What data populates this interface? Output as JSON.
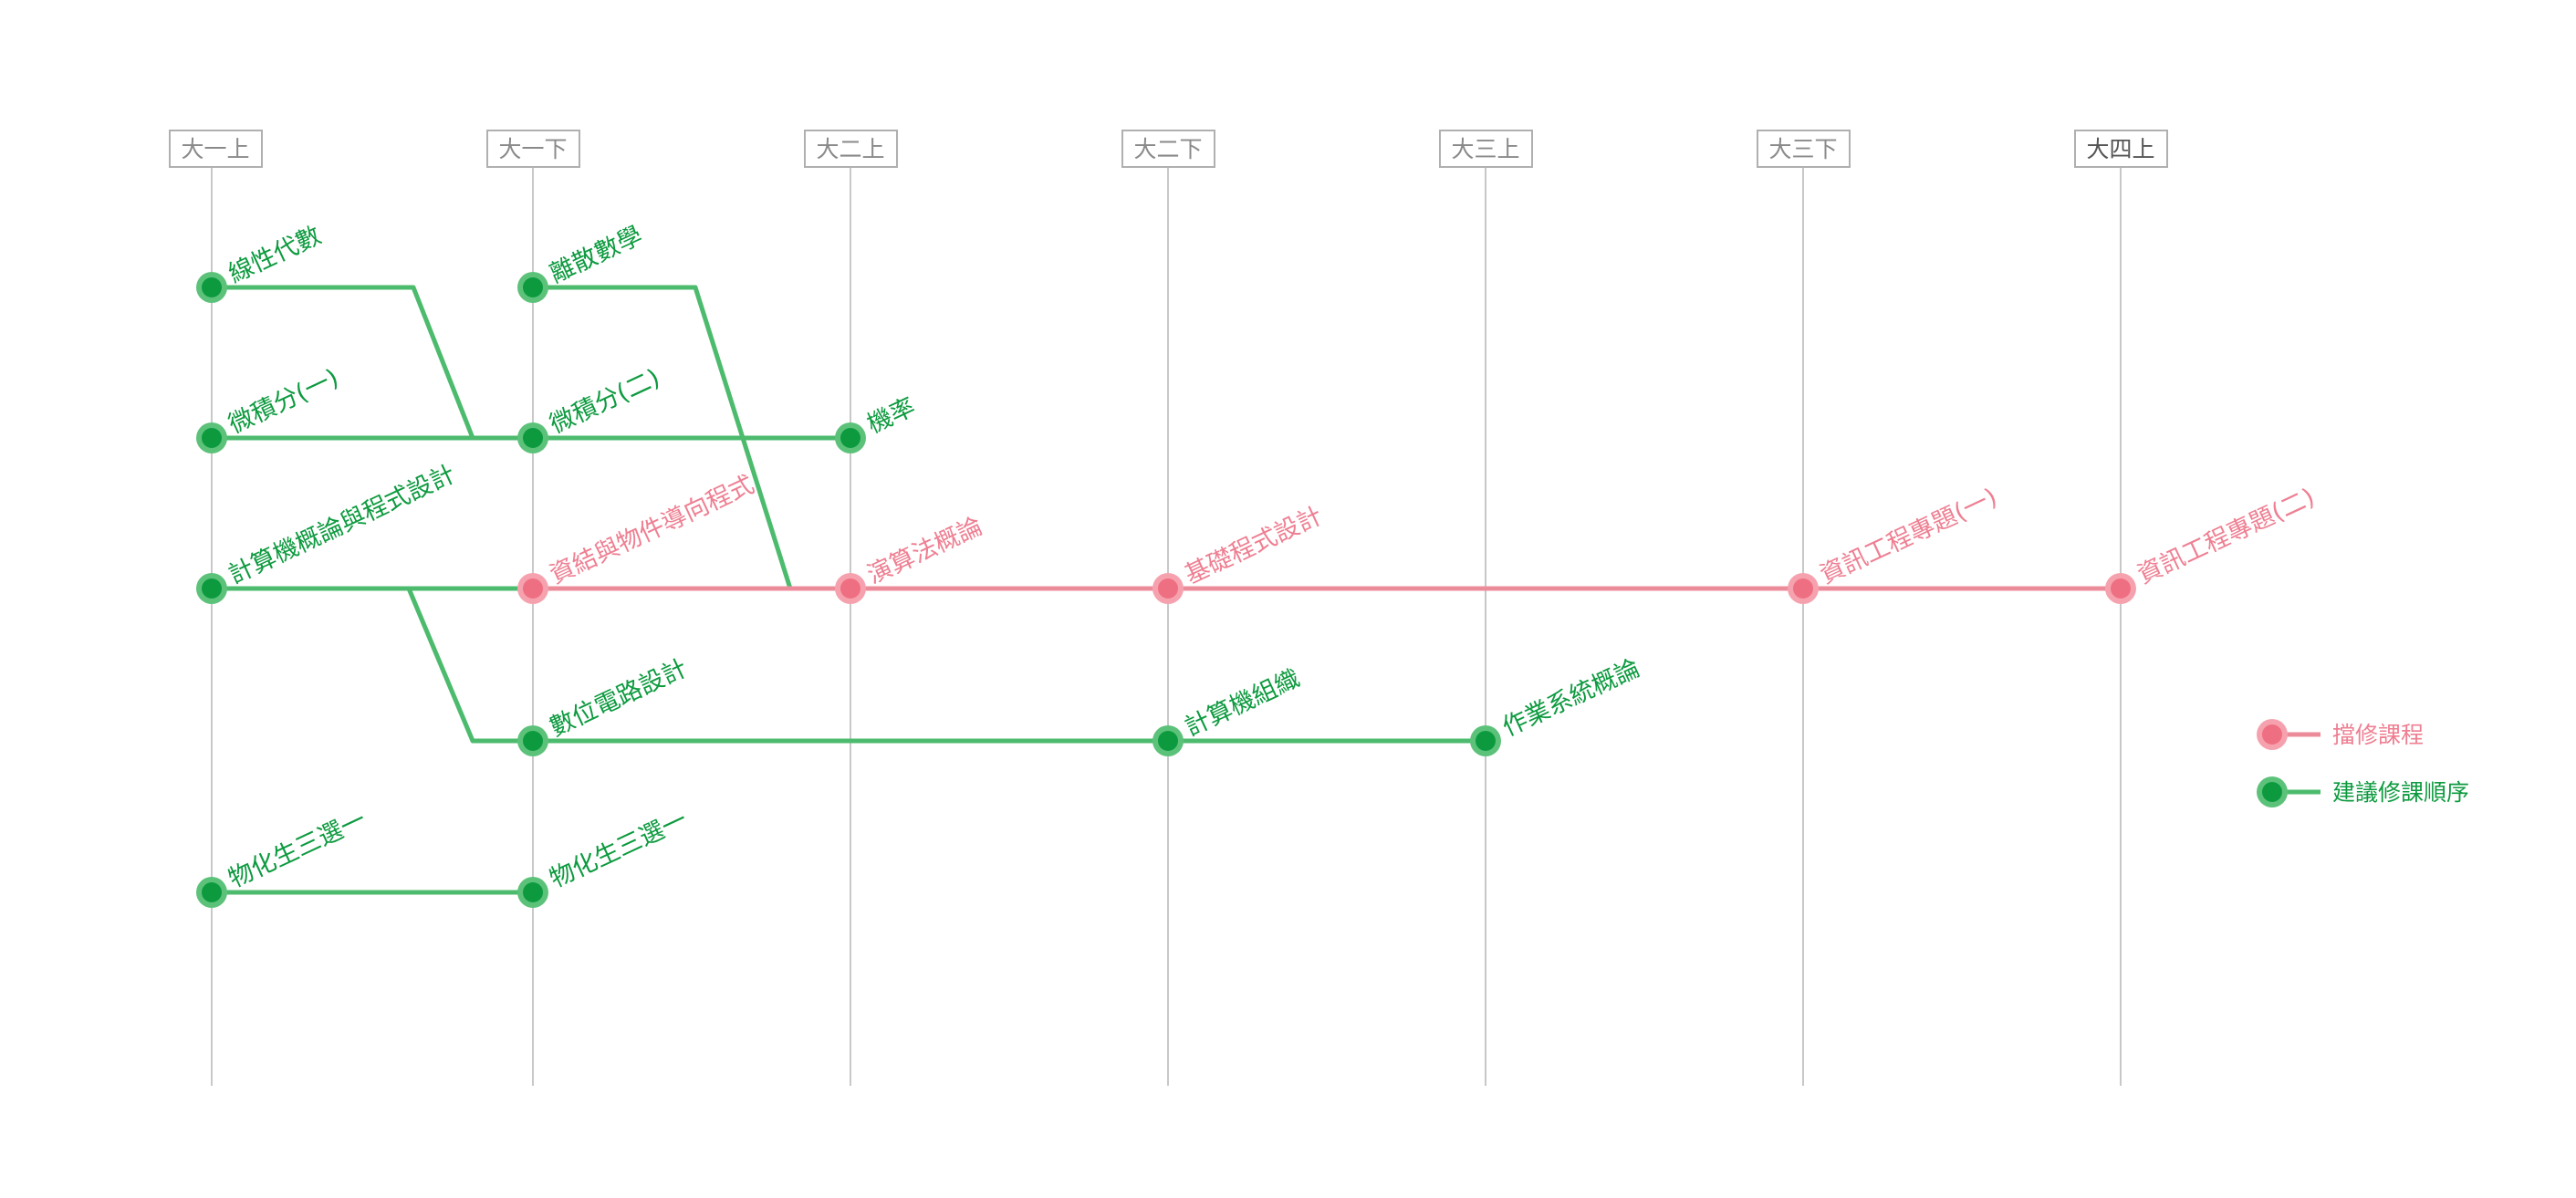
{
  "semesters": [
    {
      "id": "y1a",
      "label": "大一上"
    },
    {
      "id": "y1b",
      "label": "大一下"
    },
    {
      "id": "y2a",
      "label": "大二上"
    },
    {
      "id": "y2b",
      "label": "大二下"
    },
    {
      "id": "y3a",
      "label": "大三上"
    },
    {
      "id": "y3b",
      "label": "大三下"
    },
    {
      "id": "y4a",
      "label": "大四上"
    }
  ],
  "courses": [
    {
      "id": "linear-algebra",
      "label": "線性代數",
      "type": "suggested"
    },
    {
      "id": "discrete-math",
      "label": "離散數學",
      "type": "suggested"
    },
    {
      "id": "calculus-1",
      "label": "微積分(一)",
      "type": "suggested"
    },
    {
      "id": "calculus-2",
      "label": "微積分(二)",
      "type": "suggested"
    },
    {
      "id": "probability",
      "label": "機率",
      "type": "suggested"
    },
    {
      "id": "intro-cs",
      "label": "計算機概論與程式設計",
      "type": "suggested"
    },
    {
      "id": "ds-oop",
      "label": "資結與物件導向程式",
      "type": "prerequisite"
    },
    {
      "id": "algorithms",
      "label": "演算法概論",
      "type": "prerequisite"
    },
    {
      "id": "basic-prog",
      "label": "基礎程式設計",
      "type": "prerequisite"
    },
    {
      "id": "project-1",
      "label": "資訊工程專題(一)",
      "type": "prerequisite"
    },
    {
      "id": "project-2",
      "label": "資訊工程專題(二)",
      "type": "prerequisite"
    },
    {
      "id": "digital-circuits",
      "label": "數位電路設計",
      "type": "suggested"
    },
    {
      "id": "comp-org",
      "label": "計算機組織",
      "type": "suggested"
    },
    {
      "id": "os",
      "label": "作業系統概論",
      "type": "suggested"
    },
    {
      "id": "sci-week-a",
      "label": "物化生三選一",
      "type": "suggested"
    },
    {
      "id": "sci-week-b",
      "label": "物化生三選一",
      "type": "suggested"
    }
  ],
  "links": [
    {
      "from": "linear-algebra",
      "to": "calculus-2",
      "type": "suggested"
    },
    {
      "from": "discrete-math",
      "to": "algorithms",
      "type": "suggested"
    },
    {
      "from": "calculus-1",
      "to": "calculus-2",
      "type": "suggested"
    },
    {
      "from": "calculus-2",
      "to": "probability",
      "type": "suggested"
    },
    {
      "from": "intro-cs",
      "to": "ds-oop",
      "type": "suggested"
    },
    {
      "from": "intro-cs",
      "to": "digital-circuits",
      "type": "suggested"
    },
    {
      "from": "ds-oop",
      "to": "algorithms",
      "type": "prerequisite"
    },
    {
      "from": "algorithms",
      "to": "basic-prog",
      "type": "prerequisite"
    },
    {
      "from": "basic-prog",
      "to": "project-1",
      "type": "prerequisite"
    },
    {
      "from": "project-1",
      "to": "project-2",
      "type": "prerequisite"
    },
    {
      "from": "digital-circuits",
      "to": "comp-org",
      "type": "suggested"
    },
    {
      "from": "comp-org",
      "to": "os",
      "type": "suggested"
    },
    {
      "from": "sci-week-a",
      "to": "sci-week-b",
      "type": "suggested"
    }
  ],
  "legend": {
    "prerequisite": "擋修課程",
    "suggested": "建議修課順序"
  },
  "colors": {
    "prerequisite": "#ef6f82",
    "suggested": "#0d9a3f"
  }
}
